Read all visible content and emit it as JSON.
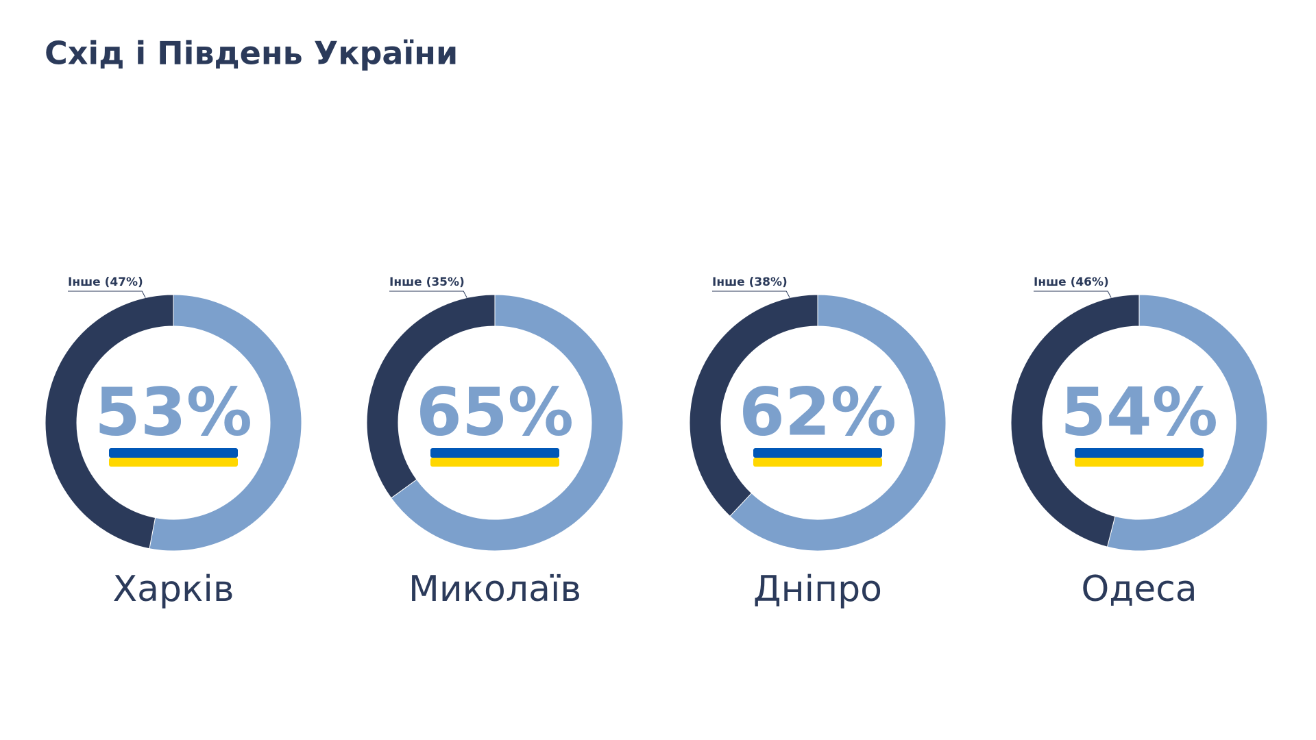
{
  "title": "Схід і Південь України",
  "chart_data": [
    {
      "type": "pie",
      "title": "Харків",
      "values": [
        53,
        47
      ],
      "value_labels": [
        "53%",
        "Інше (47%)"
      ],
      "colors": [
        "#7ca0cc",
        "#2b3a5a"
      ]
    },
    {
      "type": "pie",
      "title": "Миколаїв",
      "values": [
        65,
        35
      ],
      "value_labels": [
        "65%",
        "Інше (35%)"
      ],
      "colors": [
        "#7ca0cc",
        "#2b3a5a"
      ]
    },
    {
      "type": "pie",
      "title": "Дніпро",
      "values": [
        62,
        38
      ],
      "value_labels": [
        "62%",
        "Інше (38%)"
      ],
      "colors": [
        "#7ca0cc",
        "#2b3a5a"
      ]
    },
    {
      "type": "pie",
      "title": "Одеса",
      "values": [
        54,
        46
      ],
      "value_labels": [
        "54%",
        "Інше (46%)"
      ],
      "colors": [
        "#7ca0cc",
        "#2b3a5a"
      ]
    }
  ]
}
